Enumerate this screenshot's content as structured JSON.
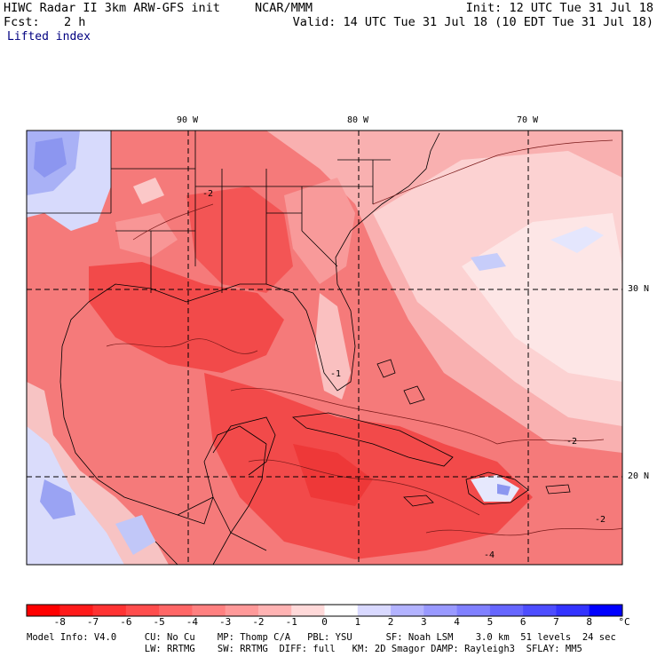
{
  "header": {
    "title": "HIWC Radar II 3km ARW-GFS init",
    "org": "NCAR/MMM",
    "init": "Init: 12 UTC Tue 31 Jul 18",
    "fcst_label": "Fcst:",
    "fcst_value": "2 h",
    "valid": "Valid: 14 UTC Tue 31 Jul 18 (10 EDT Tue 31 Jul 18)",
    "field": "Lifted index"
  },
  "map": {
    "lon_labels": [
      "90 W",
      "80 W",
      "70 W"
    ],
    "lat_labels": [
      "30 N",
      "20 N"
    ],
    "contour_labels": [
      "-2",
      "-1",
      "-2",
      "-4",
      "-2"
    ]
  },
  "colorbar": {
    "ticks": [
      "-8",
      "-7",
      "-6",
      "-5",
      "-4",
      "-3",
      "-2",
      "-1",
      "0",
      "1",
      "2",
      "3",
      "4",
      "5",
      "6",
      "7",
      "8"
    ],
    "unit": "°C",
    "colors": [
      "#ff0000",
      "#ff1a1a",
      "#ff3333",
      "#ff4d4d",
      "#ff6666",
      "#ff8080",
      "#ff9999",
      "#ffb3b3",
      "#ffd9d9",
      "#ffffff",
      "#d9d9ff",
      "#b3b3ff",
      "#9999ff",
      "#8080ff",
      "#6666ff",
      "#4d4dff",
      "#3333ff",
      "#0000ff"
    ]
  },
  "footer": {
    "line1": "Model Info: V4.0     CU: No Cu    MP: Thomp C/A   PBL: YSU      SF: Noah LSM    3.0 km  51 levels  24 sec",
    "line2": "                     LW: RRTMG    SW: RRTMG  DIFF: full   KM: 2D Smagor DAMP: Rayleigh3  SFLAY: MM5"
  },
  "colors": {
    "warm_dark": "#f24a4a",
    "warm_mid": "#f57070",
    "warm_light": "#f9a8a8",
    "warm_pale": "#fcd6d6",
    "cool": "#c7cdfa",
    "cool_dark": "#8c96f0"
  }
}
